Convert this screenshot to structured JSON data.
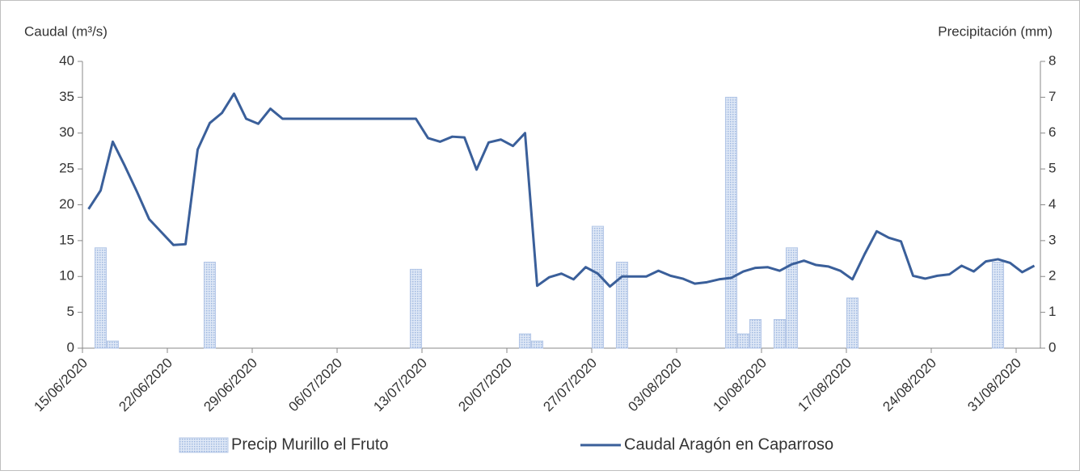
{
  "chart_data": {
    "type": "combo",
    "y_label": "Caudal (m³/s)",
    "y2_label": "Precipitación (mm)",
    "x": [
      "15/06/2020",
      "16/06/2020",
      "17/06/2020",
      "18/06/2020",
      "19/06/2020",
      "20/06/2020",
      "21/06/2020",
      "22/06/2020",
      "23/06/2020",
      "24/06/2020",
      "25/06/2020",
      "26/06/2020",
      "27/06/2020",
      "28/06/2020",
      "29/06/2020",
      "30/06/2020",
      "01/07/2020",
      "02/07/2020",
      "03/07/2020",
      "04/07/2020",
      "05/07/2020",
      "06/07/2020",
      "07/07/2020",
      "08/07/2020",
      "09/07/2020",
      "10/07/2020",
      "11/07/2020",
      "12/07/2020",
      "13/07/2020",
      "14/07/2020",
      "15/07/2020",
      "16/07/2020",
      "17/07/2020",
      "18/07/2020",
      "19/07/2020",
      "20/07/2020",
      "21/07/2020",
      "22/07/2020",
      "23/07/2020",
      "24/07/2020",
      "25/07/2020",
      "26/07/2020",
      "27/07/2020",
      "28/07/2020",
      "29/07/2020",
      "30/07/2020",
      "31/07/2020",
      "01/08/2020",
      "02/08/2020",
      "03/08/2020",
      "04/08/2020",
      "05/08/2020",
      "06/08/2020",
      "07/08/2020",
      "08/08/2020",
      "09/08/2020",
      "10/08/2020",
      "11/08/2020",
      "12/08/2020",
      "13/08/2020",
      "14/08/2020",
      "15/08/2020",
      "16/08/2020",
      "17/08/2020",
      "18/08/2020",
      "19/08/2020",
      "20/08/2020",
      "21/08/2020",
      "22/08/2020",
      "23/08/2020",
      "24/08/2020",
      "25/08/2020",
      "26/08/2020",
      "27/08/2020",
      "28/08/2020",
      "29/08/2020",
      "30/08/2020",
      "31/08/2020",
      "01/09/2020"
    ],
    "xticks": [
      "15/06/2020",
      "22/06/2020",
      "29/06/2020",
      "06/07/2020",
      "13/07/2020",
      "20/07/2020",
      "27/07/2020",
      "03/08/2020",
      "10/08/2020",
      "17/08/2020",
      "24/08/2020",
      "31/08/2020"
    ],
    "series": [
      {
        "name": "Precip Murillo el Fruto",
        "type": "bar",
        "axis": "y2",
        "color": "#b4c7e7",
        "values": [
          0,
          2.8,
          0.2,
          0,
          0,
          0,
          0,
          0,
          0,
          0,
          2.4,
          0,
          0,
          0,
          0,
          0,
          0,
          0,
          0,
          0,
          0,
          0,
          0,
          0,
          0,
          0,
          0,
          2.2,
          0,
          0,
          0,
          0,
          0,
          0,
          0,
          0,
          0.4,
          0.2,
          0,
          0,
          0,
          0,
          3.4,
          0,
          2.4,
          0,
          0,
          0,
          0,
          0,
          0,
          0,
          0,
          7.0,
          0.4,
          0.8,
          0,
          0.8,
          2.8,
          0,
          0,
          0,
          0,
          1.4,
          0,
          0,
          0,
          0,
          0,
          0,
          0,
          0,
          0,
          0,
          0,
          2.4,
          0,
          0,
          0
        ]
      },
      {
        "name": "Caudal Aragón en Caparroso",
        "type": "line",
        "color": "#3a5f9a",
        "values": [
          19.4,
          22.0,
          28.8,
          25.4,
          21.8,
          18.0,
          16.2,
          14.4,
          14.5,
          27.7,
          31.4,
          32.8,
          35.5,
          32.0,
          31.3,
          33.4,
          32.0,
          32.0,
          32.0,
          32.0,
          32.0,
          32.0,
          32.0,
          32.0,
          32.0,
          32.0,
          32.0,
          32.0,
          29.3,
          28.8,
          29.5,
          29.4,
          24.9,
          28.7,
          29.1,
          28.2,
          30.0,
          8.7,
          9.9,
          10.4,
          9.6,
          11.3,
          10.4,
          8.6,
          10.0,
          10.0,
          10.0,
          10.8,
          10.1,
          9.7,
          9.0,
          9.2,
          9.6,
          9.8,
          10.7,
          11.2,
          11.3,
          10.8,
          11.7,
          12.2,
          11.6,
          11.4,
          10.8,
          9.6,
          13.1,
          16.3,
          15.4,
          14.9,
          10.1,
          9.7,
          10.1,
          10.3,
          11.5,
          10.7,
          12.1,
          12.4,
          11.9,
          10.6,
          11.5
        ]
      }
    ],
    "ylim": [
      0,
      40
    ],
    "yticks": [
      0,
      5,
      10,
      15,
      20,
      25,
      30,
      35,
      40
    ],
    "y2lim": [
      0,
      8
    ],
    "y2ticks": [
      0,
      1,
      2,
      3,
      4,
      5,
      6,
      7,
      8
    ]
  }
}
